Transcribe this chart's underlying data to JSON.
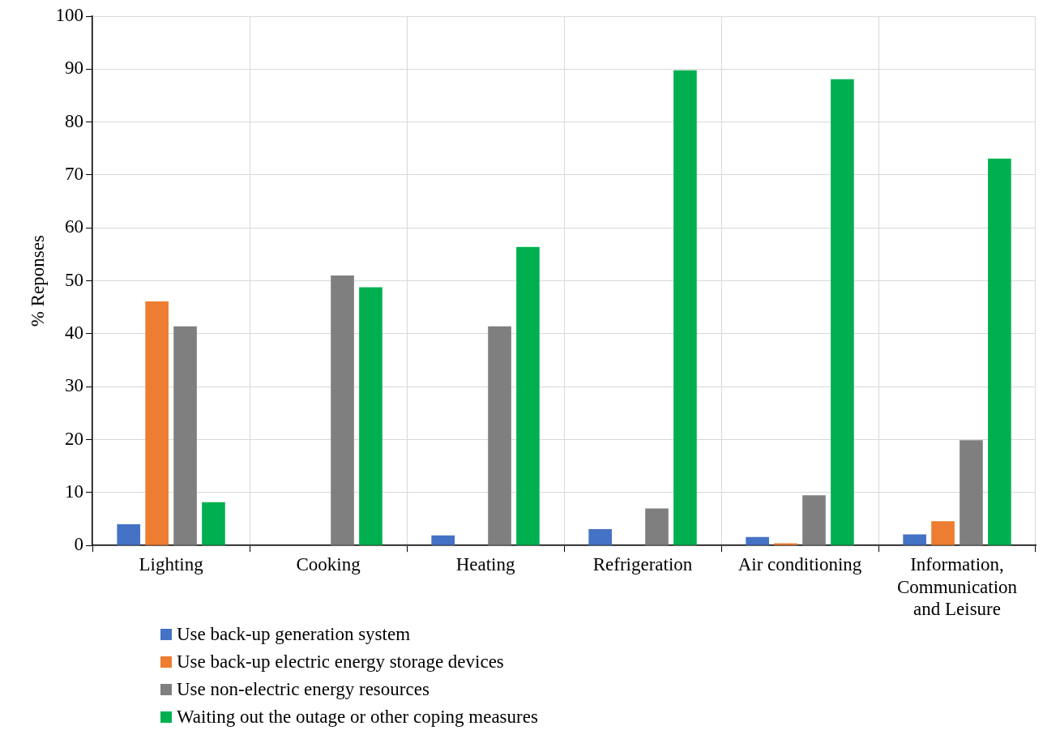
{
  "chart_data": {
    "type": "bar",
    "ylabel": "% Reponses",
    "categories": [
      "Lighting",
      "Cooking",
      "Heating",
      "Refrigeration",
      "Air conditioning",
      "Information, Communication and Leisure"
    ],
    "series": [
      {
        "name": "Use back-up generation system",
        "color": "#4472c4",
        "values": [
          4.0,
          0,
          1.9,
          3.1,
          1.6,
          2.1
        ]
      },
      {
        "name": "Use back-up electric energy storage devices",
        "color": "#ed7d31",
        "values": [
          46.1,
          0,
          0,
          0,
          0.4,
          4.6
        ]
      },
      {
        "name": "Use non-electric energy resources",
        "color": "#7f7f7f",
        "values": [
          41.4,
          51.0,
          41.4,
          7.0,
          9.5,
          19.9
        ]
      },
      {
        "name": "Waiting out the outage or other coping measures",
        "color": "#00b050",
        "values": [
          8.2,
          48.8,
          56.4,
          89.8,
          88.1,
          73.1
        ]
      }
    ],
    "ylim": [
      0,
      100
    ],
    "yticks": [
      0,
      10,
      20,
      30,
      40,
      50,
      60,
      70,
      80,
      90,
      100
    ],
    "grid": true,
    "legend": "bottom left"
  }
}
